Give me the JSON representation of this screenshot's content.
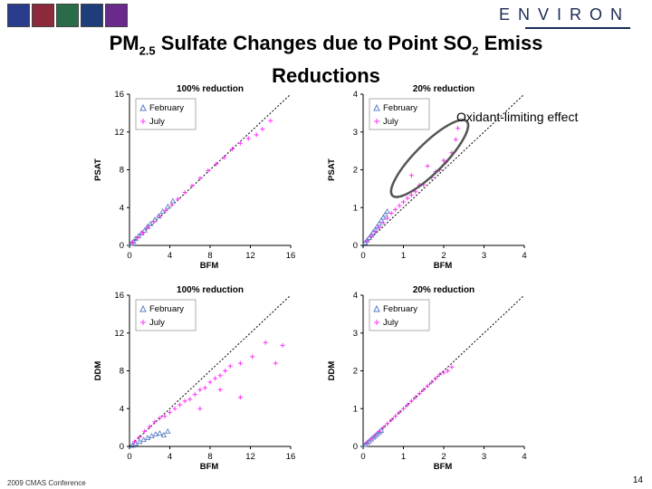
{
  "header": {
    "logos": [
      "logo-1",
      "logo-2",
      "logo-3",
      "logo-4",
      "logo-5"
    ],
    "logo_colors": [
      "#2a3c8c",
      "#8c2a3c",
      "#2a6c4a",
      "#1f3d7a",
      "#6a2a8c"
    ],
    "brand": "ENVIRON",
    "brand_color": "#1b2a55"
  },
  "title": {
    "pm": "PM",
    "pm_sub": "2.5",
    "mid": " Sulfate Changes due to Point SO",
    "so2_sub": "2",
    "end": " Emiss",
    "line2": "Reductions"
  },
  "annotation": "Oxidant-limiting effect",
  "footer": {
    "conference": "2009 CMAS Conference",
    "page": "14"
  },
  "colors": {
    "february": "#5b7fc6",
    "july": "#ff33ff",
    "axis": "#000000",
    "ellipse": "#555555"
  },
  "chart_data": [
    {
      "type": "scatter",
      "title": "100% reduction",
      "xlabel": "BFM",
      "ylabel": "PSAT",
      "xlim": [
        0,
        16
      ],
      "ylim": [
        0,
        16
      ],
      "xticks": [
        "0",
        "4",
        "8",
        "12",
        "16"
      ],
      "yticks": [
        "0",
        "4",
        "8",
        "12",
        "16"
      ],
      "legend": [
        "February",
        "July"
      ],
      "series": [
        {
          "name": "February",
          "x": [
            0.2,
            0.4,
            0.6,
            0.9,
            1.2,
            1.5,
            1.8,
            2.1,
            2.5,
            2.9,
            3.3,
            3.8,
            4.3
          ],
          "y": [
            0.2,
            0.4,
            0.7,
            1.0,
            1.3,
            1.6,
            2.0,
            2.3,
            2.7,
            3.1,
            3.6,
            4.1,
            4.7
          ]
        },
        {
          "name": "July",
          "x": [
            0.3,
            0.8,
            1.3,
            1.8,
            2.4,
            3.0,
            3.6,
            4.2,
            4.8,
            5.5,
            6.2,
            7.0,
            7.8,
            8.6,
            9.4,
            10.2,
            11.0,
            11.8,
            12.6,
            13.2,
            14.0
          ],
          "y": [
            0.3,
            0.8,
            1.3,
            1.9,
            2.5,
            3.1,
            3.7,
            4.3,
            4.9,
            5.6,
            6.3,
            7.1,
            7.9,
            8.6,
            9.3,
            10.2,
            10.8,
            11.3,
            11.7,
            12.3,
            13.2
          ]
        }
      ]
    },
    {
      "type": "scatter",
      "title": "20% reduction",
      "xlabel": "BFM",
      "ylabel": "PSAT",
      "xlim": [
        0,
        4
      ],
      "ylim": [
        0,
        4
      ],
      "xticks": [
        "0",
        "1",
        "2",
        "3",
        "4"
      ],
      "yticks": [
        "0",
        "1",
        "2",
        "3",
        "4"
      ],
      "legend": [
        "February",
        "July"
      ],
      "series": [
        {
          "name": "February",
          "x": [
            0.05,
            0.1,
            0.15,
            0.2,
            0.25,
            0.3,
            0.35,
            0.4,
            0.45,
            0.5,
            0.55,
            0.6
          ],
          "y": [
            0.07,
            0.14,
            0.2,
            0.27,
            0.35,
            0.42,
            0.5,
            0.58,
            0.66,
            0.74,
            0.82,
            0.9
          ]
        },
        {
          "name": "July",
          "x": [
            0.1,
            0.2,
            0.3,
            0.4,
            0.5,
            0.6,
            0.7,
            0.8,
            0.9,
            1.0,
            1.1,
            1.2,
            1.3,
            1.5,
            1.7,
            1.9,
            2.05,
            2.2,
            2.3,
            2.35,
            1.2,
            1.4,
            1.6,
            1.8,
            2.0
          ],
          "y": [
            0.12,
            0.24,
            0.36,
            0.48,
            0.6,
            0.72,
            0.85,
            0.95,
            1.05,
            1.15,
            1.25,
            1.33,
            1.42,
            1.6,
            1.8,
            2.0,
            2.2,
            2.45,
            2.8,
            3.1,
            1.85,
            1.6,
            2.1,
            1.95,
            2.25
          ]
        }
      ]
    },
    {
      "type": "scatter",
      "title": "100% reduction",
      "xlabel": "BFM",
      "ylabel": "DDM",
      "xlim": [
        0,
        16
      ],
      "ylim": [
        0,
        16
      ],
      "xticks": [
        "0",
        "4",
        "8",
        "12",
        "16"
      ],
      "yticks": [
        "0",
        "4",
        "8",
        "12",
        "16"
      ],
      "legend": [
        "February",
        "July"
      ],
      "series": [
        {
          "name": "February",
          "x": [
            0.3,
            0.6,
            1.0,
            1.4,
            1.8,
            2.2,
            2.6,
            3.0,
            3.4,
            3.8
          ],
          "y": [
            0.1,
            0.3,
            0.5,
            0.7,
            0.9,
            1.1,
            1.3,
            1.4,
            1.2,
            1.6
          ]
        },
        {
          "name": "July",
          "x": [
            0.5,
            1.0,
            1.5,
            2.0,
            2.5,
            3.0,
            3.5,
            4.0,
            4.5,
            5.0,
            5.5,
            6.0,
            6.5,
            7.0,
            7.5,
            8.0,
            8.5,
            9.0,
            9.5,
            10.0,
            11.0,
            12.2,
            13.5,
            14.5,
            15.2,
            7.0,
            9.0,
            11.0
          ],
          "y": [
            0.5,
            1.0,
            1.6,
            2.1,
            2.6,
            3.0,
            3.2,
            3.6,
            4.0,
            4.4,
            4.8,
            5.0,
            5.5,
            6.0,
            6.2,
            6.8,
            7.2,
            7.5,
            8.0,
            8.5,
            8.8,
            9.5,
            11.0,
            8.8,
            10.7,
            4.0,
            6.0,
            5.2
          ]
        }
      ]
    },
    {
      "type": "scatter",
      "title": "20% reduction",
      "xlabel": "BFM",
      "ylabel": "DDM",
      "xlim": [
        0,
        4
      ],
      "ylim": [
        0,
        4
      ],
      "xticks": [
        "0",
        "1",
        "2",
        "3",
        "4"
      ],
      "yticks": [
        "0",
        "1",
        "2",
        "3",
        "4"
      ],
      "legend": [
        "February",
        "July"
      ],
      "series": [
        {
          "name": "February",
          "x": [
            0.05,
            0.1,
            0.15,
            0.2,
            0.25,
            0.3,
            0.35,
            0.4,
            0.45
          ],
          "y": [
            0.05,
            0.1,
            0.14,
            0.19,
            0.24,
            0.28,
            0.33,
            0.38,
            0.42
          ]
        },
        {
          "name": "July",
          "x": [
            0.1,
            0.2,
            0.3,
            0.4,
            0.5,
            0.6,
            0.7,
            0.8,
            0.9,
            1.0,
            1.1,
            1.2,
            1.3,
            1.4,
            1.5,
            1.6,
            1.7,
            1.8,
            1.9,
            2.0,
            2.1,
            2.2
          ],
          "y": [
            0.1,
            0.2,
            0.3,
            0.4,
            0.5,
            0.6,
            0.7,
            0.8,
            0.9,
            1.0,
            1.1,
            1.2,
            1.3,
            1.4,
            1.5,
            1.6,
            1.7,
            1.8,
            1.9,
            1.95,
            2.0,
            2.1
          ]
        }
      ]
    }
  ]
}
